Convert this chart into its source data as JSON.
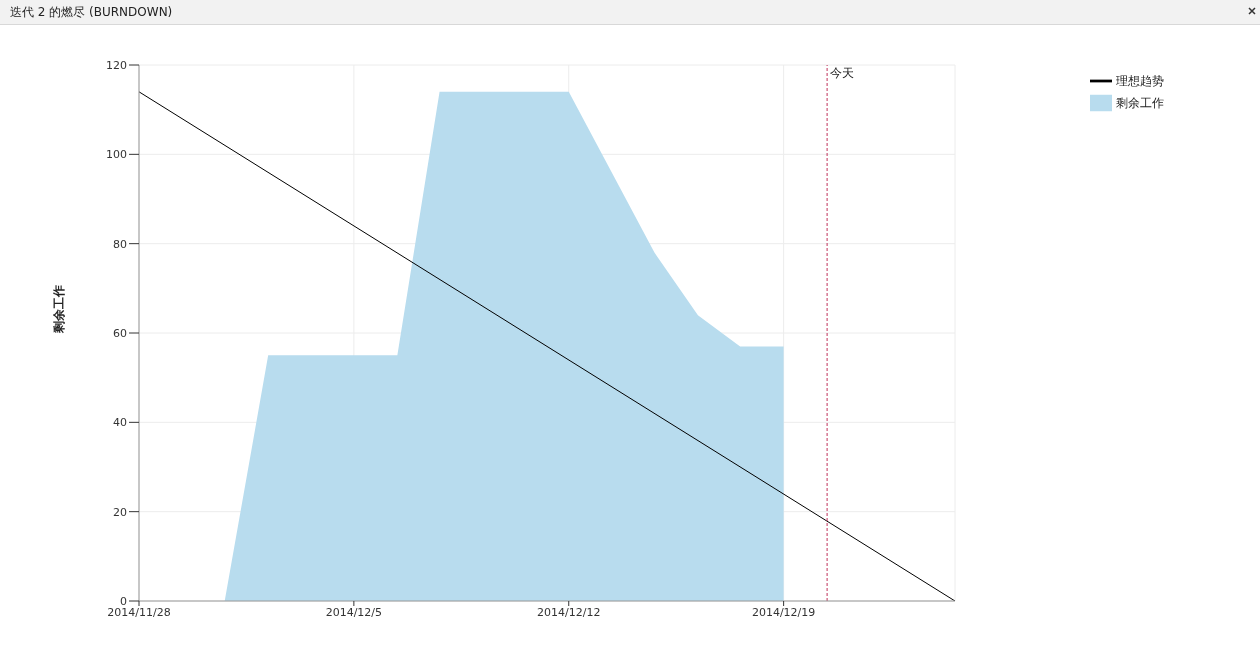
{
  "chart_data": {
    "type": "area",
    "title": "迭代 2 的燃尽 (BURNDOWN)",
    "ylabel": "剩余工作",
    "series": [
      {
        "name": "理想趋势",
        "type": "line",
        "color": "#000000",
        "x": [
          "2014-11-28T00:00",
          "2014-12-24T14:00"
        ],
        "values": [
          114,
          0
        ]
      },
      {
        "name": "剩余工作",
        "color": "#b8dcee",
        "x": [
          "2014-11-30T19:00",
          "2014-12-02T05:00",
          "2014-12-06T10:00",
          "2014-12-07T19:00",
          "2014-12-12T00:00",
          "2014-12-14T19:00",
          "2014-12-16T05:00",
          "2014-12-17T14:00",
          "2014-12-19T00:00",
          "2014-12-19T00:00"
        ],
        "values": [
          0,
          55,
          55,
          114,
          114,
          78,
          64,
          57,
          57,
          0
        ]
      }
    ],
    "xlim": [
      "2014-11-28T00:00",
      "2014-12-24T14:00"
    ],
    "xticks": [
      {
        "value": "2014-11-28T00:00",
        "label": "2014/11/28"
      },
      {
        "value": "2014-12-05T00:00",
        "label": "2014/12/5"
      },
      {
        "value": "2014-12-12T00:00",
        "label": "2014/12/12"
      },
      {
        "value": "2014-12-19T00:00",
        "label": "2014/12/19"
      }
    ],
    "ylim": [
      0,
      120
    ],
    "yticks": [
      0,
      20,
      40,
      60,
      80,
      100,
      120
    ],
    "ref_lines": [
      {
        "axis": "x",
        "value": "2014-12-20T10:00",
        "label": "今天",
        "color": "#c0305a",
        "line_style": "dashed"
      }
    ],
    "grid": true,
    "legend": "top right",
    "marker": "none"
  }
}
